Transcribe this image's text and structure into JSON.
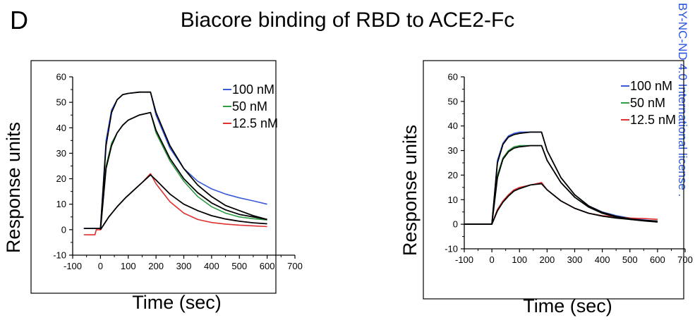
{
  "figure": {
    "panel_letter": "D",
    "title": "Biacore binding of RBD to ACE2-Fc",
    "side_text": "BY-NC-ND 4.0 International license ."
  },
  "chart_data": [
    {
      "type": "line",
      "title": "",
      "xlabel": "Time (sec)",
      "ylabel": "Response units",
      "xlim": [
        -100,
        700
      ],
      "ylim": [
        -10,
        60
      ],
      "xticks": [
        -100,
        0,
        100,
        200,
        300,
        400,
        500,
        600,
        700
      ],
      "yticks": [
        -10,
        0,
        10,
        20,
        30,
        40,
        50,
        60
      ],
      "legend": "top-right",
      "grid": false,
      "series": [
        {
          "name": "100 nM",
          "color": "#3b5bdb",
          "x": [
            -60,
            -20,
            0,
            20,
            40,
            60,
            80,
            100,
            140,
            180,
            200,
            250,
            300,
            350,
            400,
            450,
            500,
            550,
            600
          ],
          "y": [
            0.5,
            0.5,
            0.5,
            35,
            47,
            51,
            53,
            53.5,
            54,
            54,
            45,
            32,
            24,
            19,
            16,
            14,
            12.5,
            11.3,
            10
          ]
        },
        {
          "name": "50 nM",
          "color": "#2f9e44",
          "x": [
            0,
            20,
            40,
            60,
            80,
            100,
            140,
            180,
            200,
            250,
            300,
            350,
            400,
            450,
            500,
            550,
            600
          ],
          "y": [
            0,
            25,
            34,
            38,
            41,
            43,
            45,
            46,
            38,
            27,
            19,
            13,
            9,
            6.5,
            5,
            4.3,
            3.8
          ]
        },
        {
          "name": "12.5 nM",
          "color": "#e03131",
          "x": [
            -60,
            -20,
            -15,
            0,
            30,
            60,
            90,
            120,
            150,
            180,
            200,
            250,
            300,
            350,
            400,
            450,
            500,
            550,
            600
          ],
          "y": [
            -2,
            -2,
            0,
            0,
            5,
            9,
            12.5,
            15.5,
            18.5,
            22,
            18,
            11,
            6.5,
            4,
            2.8,
            2.2,
            1.8,
            1.5,
            1.2
          ]
        },
        {
          "name": "",
          "color": "#000000",
          "x": [
            -60,
            -20,
            0,
            20,
            40,
            60,
            80,
            100,
            140,
            180,
            200,
            250,
            300,
            350,
            400,
            450,
            500,
            550,
            600
          ],
          "y": [
            0.5,
            0.5,
            0.5,
            33,
            46,
            51,
            53,
            53.5,
            54,
            54,
            46,
            33,
            24,
            17.5,
            13,
            9.5,
            7.5,
            5.5,
            4
          ]
        },
        {
          "name": "",
          "color": "#000000",
          "x": [
            0,
            20,
            40,
            60,
            80,
            100,
            140,
            180,
            200,
            250,
            300,
            350,
            400,
            450,
            500,
            550,
            600
          ],
          "y": [
            0,
            24,
            33,
            38,
            41,
            43,
            45,
            46,
            39,
            28,
            20,
            14.5,
            10.5,
            7.8,
            6,
            5,
            4
          ]
        },
        {
          "name": "",
          "color": "#000000",
          "x": [
            0,
            30,
            60,
            90,
            120,
            150,
            180,
            200,
            250,
            300,
            350,
            400,
            450,
            500,
            550,
            600
          ],
          "y": [
            0,
            5,
            9,
            12.5,
            15.5,
            18.5,
            21.5,
            19.5,
            14,
            10,
            7.5,
            5.5,
            4.2,
            3.3,
            2.7,
            2.3
          ]
        }
      ]
    },
    {
      "type": "line",
      "title": "",
      "xlabel": "Time (sec)",
      "ylabel": "Response units",
      "xlim": [
        -100,
        700
      ],
      "ylim": [
        -10,
        60
      ],
      "xticks": [
        -100,
        0,
        100,
        200,
        300,
        400,
        500,
        600,
        700
      ],
      "yticks": [
        -10,
        0,
        10,
        20,
        30,
        40,
        50,
        60
      ],
      "legend": "top-right",
      "grid": false,
      "series": [
        {
          "name": "100 nM",
          "color": "#3b5bdb",
          "x": [
            -100,
            -10,
            0,
            20,
            40,
            60,
            80,
            100,
            140,
            180,
            200,
            250,
            300,
            350,
            400,
            450,
            500,
            550,
            600
          ],
          "y": [
            0,
            0,
            0,
            26,
            33,
            36,
            37,
            37.5,
            37.5,
            37.5,
            30,
            19,
            12,
            7.5,
            5,
            3.5,
            2.5,
            1.8,
            1.2
          ]
        },
        {
          "name": "50 nM",
          "color": "#2f9e44",
          "x": [
            -100,
            -10,
            0,
            20,
            40,
            60,
            80,
            100,
            140,
            180,
            200,
            250,
            300,
            350,
            400,
            450,
            500,
            550,
            600
          ],
          "y": [
            0,
            0,
            0,
            20,
            27,
            30,
            31.5,
            32,
            32,
            32,
            26,
            17,
            11,
            7,
            4.5,
            3,
            2,
            1.5,
            1
          ]
        },
        {
          "name": "12.5 nM",
          "color": "#e03131",
          "x": [
            -100,
            -10,
            0,
            20,
            40,
            60,
            80,
            100,
            140,
            180,
            200,
            250,
            300,
            350,
            400,
            450,
            500,
            550,
            600
          ],
          "y": [
            0,
            0,
            0,
            6,
            9.5,
            12,
            14,
            15,
            16,
            17,
            14,
            9.5,
            6.5,
            4.5,
            3.5,
            3,
            2.5,
            2.3,
            2
          ]
        },
        {
          "name": "",
          "color": "#000000",
          "x": [
            -100,
            -10,
            0,
            20,
            40,
            60,
            80,
            100,
            140,
            180,
            200,
            250,
            300,
            350,
            400,
            450,
            500,
            550,
            600
          ],
          "y": [
            0,
            0,
            0,
            25,
            32.5,
            35.5,
            36.5,
            37,
            37.5,
            37.5,
            30,
            19,
            12,
            7.5,
            4.8,
            3.2,
            2.2,
            1.5,
            1
          ]
        },
        {
          "name": "",
          "color": "#000000",
          "x": [
            -100,
            -10,
            0,
            20,
            40,
            60,
            80,
            100,
            140,
            180,
            200,
            250,
            300,
            350,
            400,
            450,
            500,
            550,
            600
          ],
          "y": [
            0,
            0,
            0,
            19,
            26.5,
            29.5,
            31,
            31.5,
            32,
            32,
            26,
            17,
            11,
            7,
            4.5,
            3,
            2,
            1.4,
            0.9
          ]
        },
        {
          "name": "",
          "color": "#000000",
          "x": [
            -100,
            -10,
            0,
            20,
            40,
            60,
            80,
            100,
            140,
            180,
            200,
            250,
            300,
            350,
            400,
            450,
            500,
            550,
            600
          ],
          "y": [
            0,
            0,
            0,
            5.5,
            9,
            11.5,
            13.5,
            14.5,
            16,
            16.5,
            14,
            9.5,
            6.5,
            4.5,
            3.3,
            2.5,
            2,
            1.6,
            1.3
          ]
        }
      ]
    }
  ]
}
